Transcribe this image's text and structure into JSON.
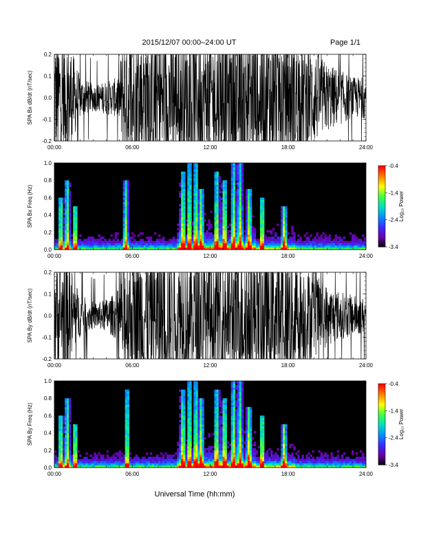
{
  "header": {
    "title": "2015/12/07  00:00–24:00 UT",
    "page": "Page 1/1"
  },
  "footer": {
    "xlabel": "Universal Time (hh:mm)"
  },
  "colors": {
    "trace": "#000000",
    "spectrogram_background": "#000000",
    "colormap": [
      "#000000",
      "#6a00a8",
      "#3a2cff",
      "#0090ff",
      "#00e0c0",
      "#40ff40",
      "#ffff00",
      "#ff8000",
      "#ff0000"
    ]
  },
  "chart_data": [
    {
      "type": "line",
      "panel": "bx-trace",
      "ylabel": "SPA Bx dB/dt (nT/sec)",
      "xlim": [
        0,
        24
      ],
      "ylim": [
        -0.2,
        0.2
      ],
      "x_ticks": [
        "00:00",
        "06:00",
        "12:00",
        "18:00",
        "24:00"
      ],
      "y_ticks": [
        "0.2",
        "0.1",
        "0.0",
        "-0.1",
        "-0.2"
      ],
      "series": [
        {
          "x": [
            0,
            0.5,
            1,
            1.5,
            2,
            2.5,
            3,
            3.5,
            4,
            4.5,
            5,
            5.3,
            5.5,
            6,
            7,
            8,
            9,
            10,
            11,
            12,
            13,
            14,
            15,
            16,
            17,
            18,
            19,
            20,
            21,
            22,
            23,
            24
          ],
          "amplitude": [
            0.2,
            0.17,
            0.2,
            0.12,
            0.06,
            0.05,
            0.04,
            0.04,
            0.05,
            0.05,
            0.07,
            0.2,
            0.2,
            0.2,
            0.2,
            0.2,
            0.2,
            0.2,
            0.2,
            0.2,
            0.2,
            0.2,
            0.2,
            0.2,
            0.2,
            0.2,
            0.18,
            0.14,
            0.1,
            0.08,
            0.06,
            0.06
          ]
        }
      ]
    },
    {
      "type": "heatmap",
      "panel": "bx-spectrogram",
      "ylabel": "SPA Bx Freq (Hz)",
      "xlim": [
        0,
        24
      ],
      "ylim": [
        0.0,
        1.0
      ],
      "x_ticks": [
        "00:00",
        "06:00",
        "12:00",
        "18:00",
        "24:00"
      ],
      "y_ticks": [
        "1.0",
        "0.8",
        "0.6",
        "0.4",
        "0.2",
        "0.0"
      ],
      "colorbar": {
        "label": "Log₁₀ Power",
        "range": [
          -3.4,
          -0.4
        ],
        "ticks": [
          "-0.4",
          "-1.4",
          "-2.4",
          "-3.4"
        ]
      },
      "bursts": [
        [
          0.5,
          0.6
        ],
        [
          1.0,
          0.8
        ],
        [
          1.6,
          0.5
        ],
        [
          5.5,
          0.8
        ],
        [
          9.9,
          0.9
        ],
        [
          10.4,
          1.0
        ],
        [
          10.9,
          1.0
        ],
        [
          11.3,
          0.7
        ],
        [
          12.5,
          0.9
        ],
        [
          13.1,
          0.8
        ],
        [
          13.8,
          1.0
        ],
        [
          14.3,
          1.0
        ],
        [
          15.0,
          0.7
        ],
        [
          16.0,
          0.6
        ],
        [
          17.7,
          0.5
        ]
      ]
    },
    {
      "type": "line",
      "panel": "by-trace",
      "ylabel": "SPA By dB/dt (nT/sec)",
      "xlim": [
        0,
        24
      ],
      "ylim": [
        -0.2,
        0.2
      ],
      "x_ticks": [
        "00:00",
        "06:00",
        "12:00",
        "18:00",
        "24:00"
      ],
      "y_ticks": [
        "0.2",
        "0.1",
        "0.0",
        "-0.1",
        "-0.2"
      ],
      "series": [
        {
          "x": [
            0,
            0.5,
            1,
            1.5,
            2,
            2.5,
            3,
            3.5,
            4,
            4.5,
            5,
            5.3,
            5.5,
            6,
            7,
            8,
            9,
            10,
            11,
            12,
            13,
            14,
            15,
            16,
            17,
            18,
            19,
            20,
            21,
            22,
            23,
            24
          ],
          "amplitude": [
            0.2,
            0.15,
            0.2,
            0.11,
            0.06,
            0.05,
            0.04,
            0.04,
            0.05,
            0.06,
            0.08,
            0.2,
            0.2,
            0.2,
            0.2,
            0.2,
            0.2,
            0.2,
            0.2,
            0.2,
            0.2,
            0.2,
            0.2,
            0.2,
            0.2,
            0.2,
            0.16,
            0.12,
            0.09,
            0.07,
            0.06,
            0.05
          ]
        }
      ]
    },
    {
      "type": "heatmap",
      "panel": "by-spectrogram",
      "ylabel": "SPA By Freq (Hz)",
      "xlim": [
        0,
        24
      ],
      "ylim": [
        0.0,
        1.0
      ],
      "x_ticks": [
        "00:00",
        "06:00",
        "12:00",
        "18:00",
        "24:00"
      ],
      "y_ticks": [
        "1.0",
        "0.8",
        "0.6",
        "0.4",
        "0.2",
        "0.0"
      ],
      "colorbar": {
        "label": "Log₁₀ Power",
        "range": [
          -3.4,
          -0.4
        ],
        "ticks": [
          "-0.4",
          "-1.4",
          "-2.4",
          "-3.4"
        ]
      },
      "bursts": [
        [
          0.5,
          0.6
        ],
        [
          1.0,
          0.8
        ],
        [
          1.6,
          0.5
        ],
        [
          5.6,
          0.9
        ],
        [
          9.9,
          0.9
        ],
        [
          10.4,
          1.0
        ],
        [
          10.9,
          1.0
        ],
        [
          11.3,
          0.8
        ],
        [
          12.5,
          0.9
        ],
        [
          13.1,
          0.8
        ],
        [
          13.8,
          1.0
        ],
        [
          14.3,
          1.0
        ],
        [
          15.0,
          0.7
        ],
        [
          16.0,
          0.6
        ],
        [
          17.7,
          0.5
        ]
      ]
    }
  ]
}
